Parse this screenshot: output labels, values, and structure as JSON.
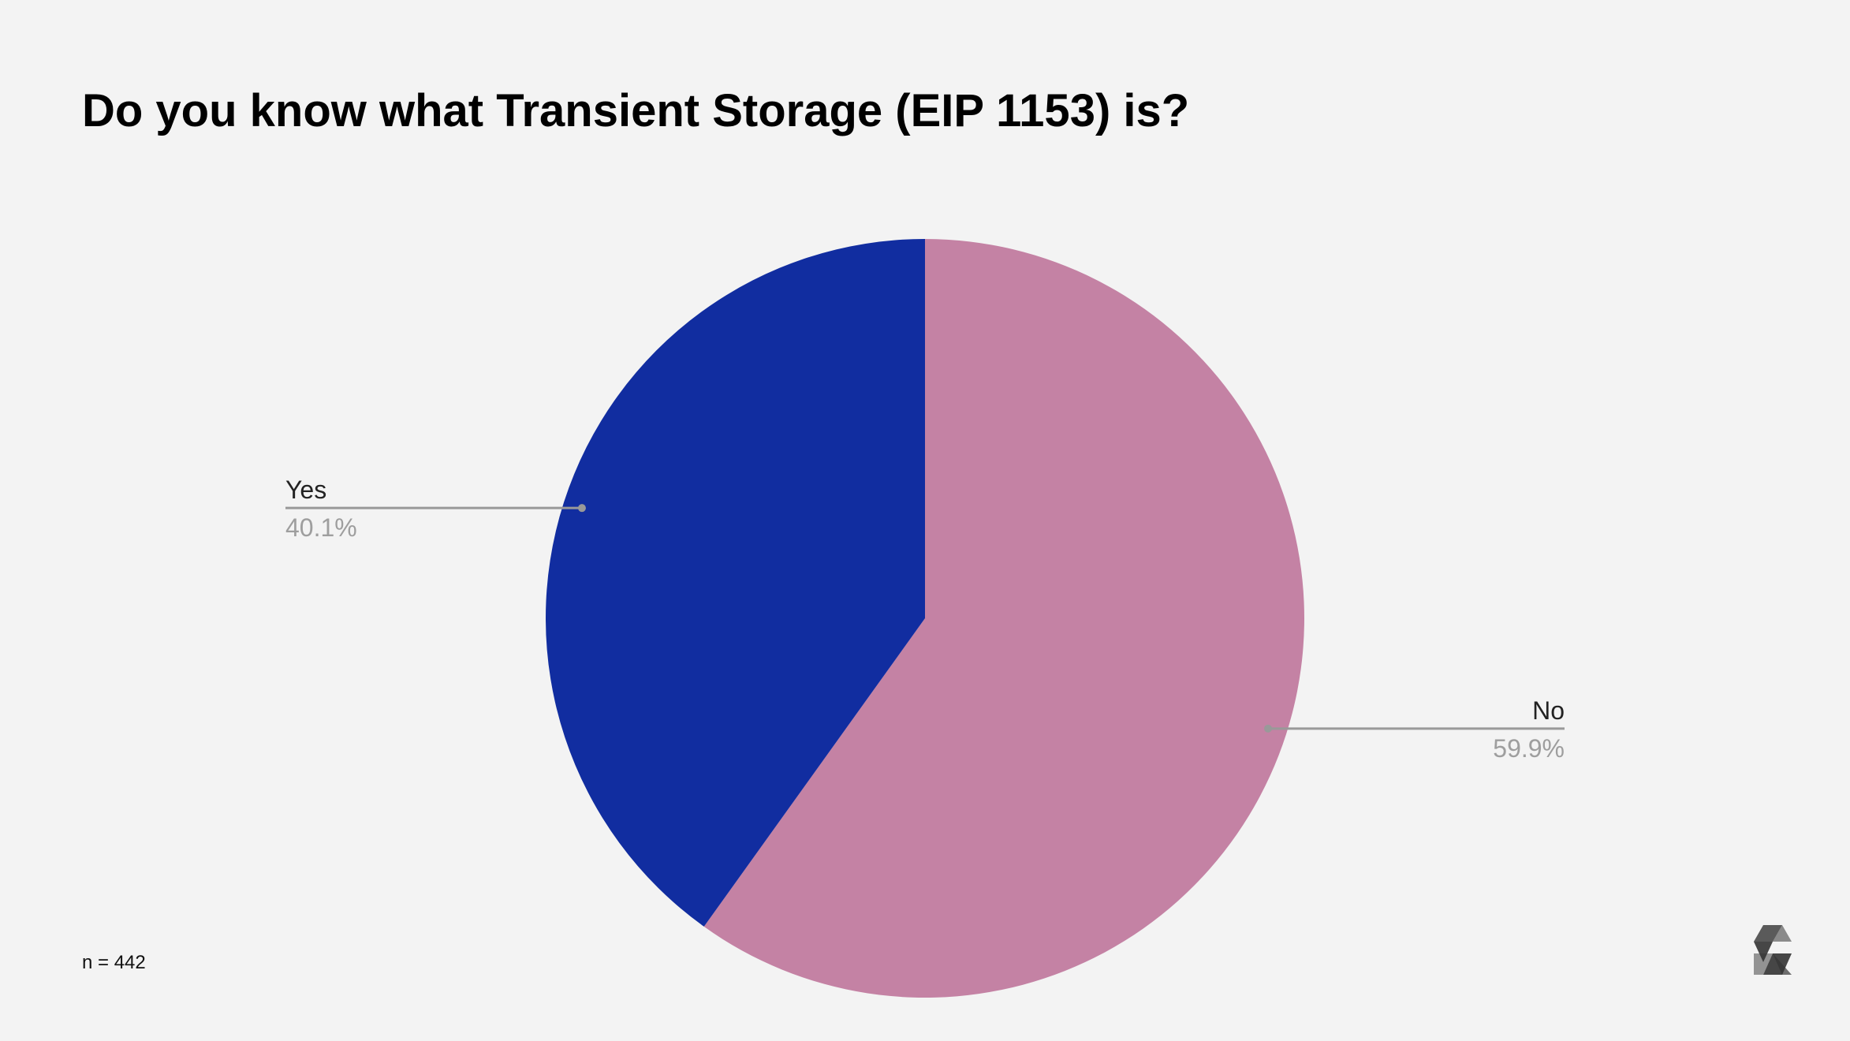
{
  "chart_data": {
    "type": "pie",
    "title": "Do you know what Transient Storage (EIP 1153) is?",
    "categories": [
      "Yes",
      "No"
    ],
    "values": [
      40.1,
      59.9
    ],
    "value_labels": [
      "40.1%",
      "59.9%"
    ],
    "colors": [
      "#112da0",
      "#c482a4"
    ],
    "annotation": "n = 442"
  }
}
